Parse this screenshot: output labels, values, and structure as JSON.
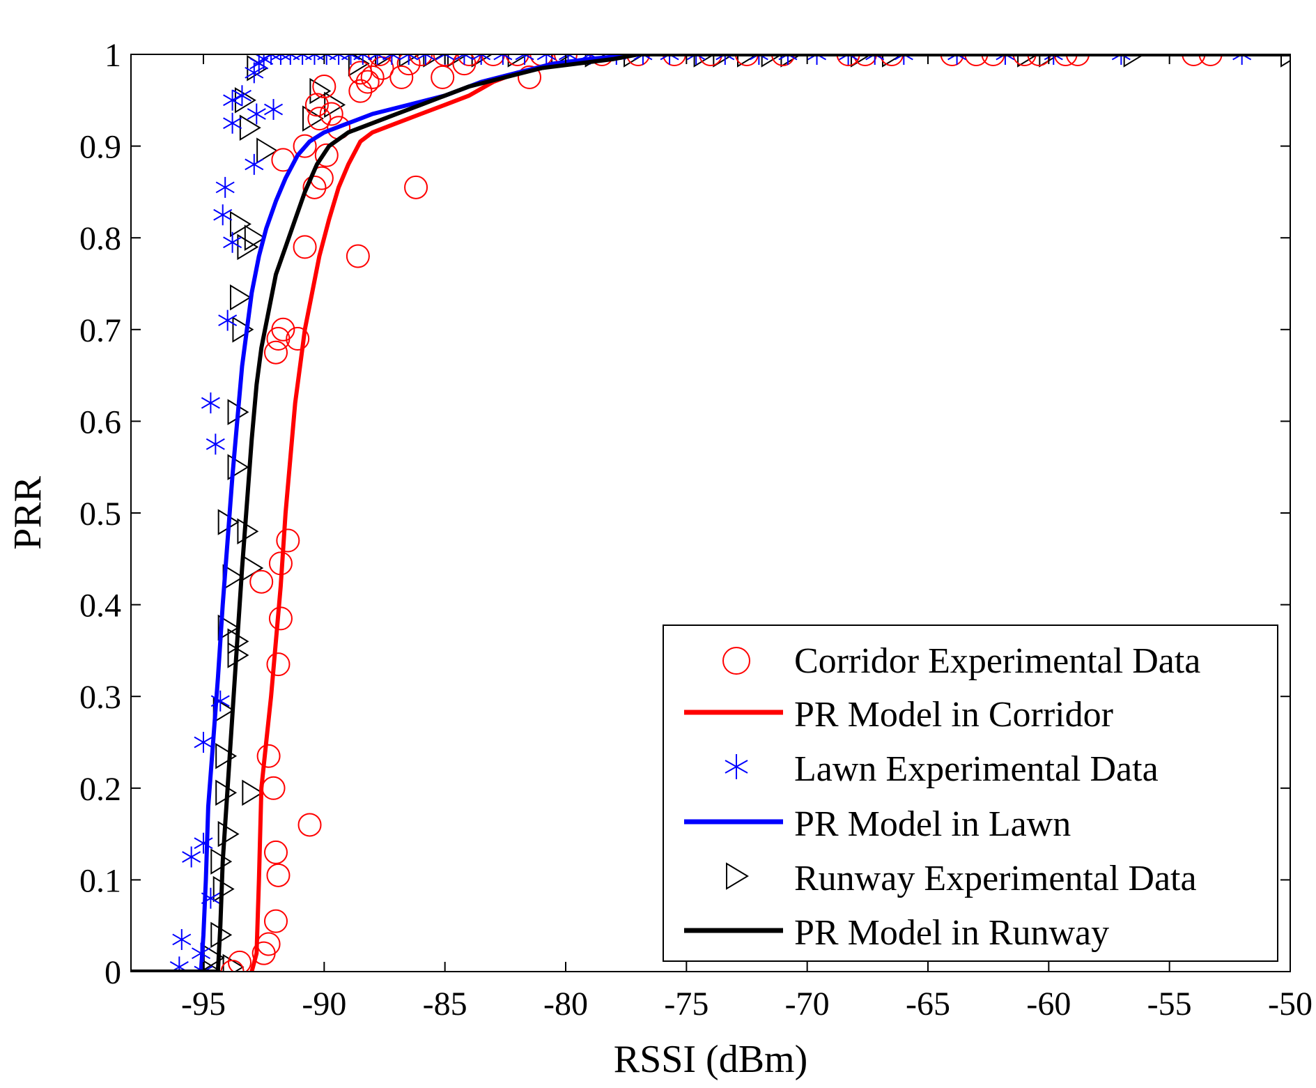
{
  "chart_data": {
    "type": "scatter",
    "title": "",
    "xlabel": "RSSI (dBm)",
    "ylabel": "PRR",
    "xlim": [
      -98,
      -50
    ],
    "ylim": [
      0,
      1
    ],
    "grid": false,
    "legend_position": "bottom-right",
    "xticks": [
      -95,
      -90,
      -85,
      -80,
      -75,
      -70,
      -65,
      -60,
      -55,
      -50
    ],
    "yticks": [
      0,
      0.1,
      0.2,
      0.3,
      0.4,
      0.5,
      0.6,
      0.7,
      0.8,
      0.9,
      1
    ],
    "xtick_labels": [
      "-95",
      "-90",
      "-85",
      "-80",
      "-75",
      "-70",
      "-65",
      "-60",
      "-55",
      "-50"
    ],
    "ytick_labels": [
      "0",
      "0.1",
      "0.2",
      "0.3",
      "0.4",
      "0.5",
      "0.6",
      "0.7",
      "0.8",
      "0.9",
      "1"
    ],
    "colors": {
      "corridor": "#ff0000",
      "lawn": "#0000ff",
      "runway": "#000000"
    },
    "series": [
      {
        "name": "Corridor Experimental Data",
        "kind": "scatter",
        "marker": "circle",
        "color": "#ff0000",
        "points": [
          [
            -93.8,
            0
          ],
          [
            -93.5,
            0.01
          ],
          [
            -92.5,
            0.02
          ],
          [
            -92.3,
            0.03
          ],
          [
            -92.0,
            0.055
          ],
          [
            -91.9,
            0.105
          ],
          [
            -92.0,
            0.13
          ],
          [
            -90.6,
            0.16
          ],
          [
            -92.1,
            0.2
          ],
          [
            -92.3,
            0.235
          ],
          [
            -91.9,
            0.335
          ],
          [
            -91.8,
            0.385
          ],
          [
            -92.6,
            0.425
          ],
          [
            -91.8,
            0.445
          ],
          [
            -91.5,
            0.47
          ],
          [
            -92.0,
            0.675
          ],
          [
            -91.9,
            0.69
          ],
          [
            -91.7,
            0.7
          ],
          [
            -91.1,
            0.69
          ],
          [
            -90.8,
            0.79
          ],
          [
            -88.6,
            0.78
          ],
          [
            -90.4,
            0.855
          ],
          [
            -86.2,
            0.855
          ],
          [
            -90.1,
            0.865
          ],
          [
            -91.7,
            0.885
          ],
          [
            -89.9,
            0.89
          ],
          [
            -90.8,
            0.9
          ],
          [
            -89.4,
            0.92
          ],
          [
            -90.2,
            0.93
          ],
          [
            -89.7,
            0.935
          ],
          [
            -90.3,
            0.945
          ],
          [
            -88.5,
            0.96
          ],
          [
            -90.0,
            0.965
          ],
          [
            -88.2,
            0.97
          ],
          [
            -88.0,
            0.975
          ],
          [
            -86.8,
            0.975
          ],
          [
            -81.5,
            0.975
          ],
          [
            -88.5,
            0.98
          ],
          [
            -87.6,
            0.985
          ],
          [
            -86.5,
            0.99
          ],
          [
            -85.1,
            0.975
          ],
          [
            -84.2,
            0.99
          ],
          [
            -87.7,
            1
          ],
          [
            -86.0,
            1
          ],
          [
            -85.0,
            1
          ],
          [
            -84.0,
            1
          ],
          [
            -83.0,
            1
          ],
          [
            -82.0,
            1
          ],
          [
            -81.0,
            1
          ],
          [
            -80.0,
            1
          ],
          [
            -78.5,
            1
          ],
          [
            -77.0,
            1
          ],
          [
            -75.5,
            1
          ],
          [
            -74.0,
            1
          ],
          [
            -72.5,
            1
          ],
          [
            -71.0,
            1
          ],
          [
            -68.3,
            1
          ],
          [
            -67.6,
            1
          ],
          [
            -66.5,
            1
          ],
          [
            -64.0,
            1
          ],
          [
            -63.0,
            1
          ],
          [
            -62.3,
            1
          ],
          [
            -61.0,
            1
          ],
          [
            -60.4,
            1
          ],
          [
            -59.3,
            1
          ],
          [
            -58.8,
            1
          ],
          [
            -54.0,
            1
          ],
          [
            -53.3,
            1
          ]
        ]
      },
      {
        "name": "PR Model in Corridor",
        "kind": "line",
        "color": "#ff0000",
        "points": [
          [
            -93.0,
            0
          ],
          [
            -92.8,
            0.02
          ],
          [
            -92.7,
            0.1
          ],
          [
            -92.6,
            0.2
          ],
          [
            -92.4,
            0.25
          ],
          [
            -92.2,
            0.3
          ],
          [
            -92.0,
            0.36
          ],
          [
            -91.8,
            0.42
          ],
          [
            -91.6,
            0.5
          ],
          [
            -91.4,
            0.56
          ],
          [
            -91.2,
            0.62
          ],
          [
            -91.0,
            0.66
          ],
          [
            -90.8,
            0.7
          ],
          [
            -90.5,
            0.74
          ],
          [
            -90.2,
            0.78
          ],
          [
            -89.8,
            0.82
          ],
          [
            -89.4,
            0.855
          ],
          [
            -89.0,
            0.88
          ],
          [
            -88.5,
            0.905
          ],
          [
            -88.0,
            0.915
          ],
          [
            -87.0,
            0.925
          ],
          [
            -86.0,
            0.935
          ],
          [
            -85.0,
            0.945
          ],
          [
            -84.0,
            0.955
          ],
          [
            -83.0,
            0.97
          ],
          [
            -82.0,
            0.98
          ],
          [
            -81.0,
            0.985
          ],
          [
            -80.0,
            0.99
          ],
          [
            -78.5,
            0.995
          ],
          [
            -77.0,
            1
          ]
        ]
      },
      {
        "name": "Lawn Experimental Data",
        "kind": "scatter",
        "marker": "asterisk",
        "color": "#0000ff",
        "points": [
          [
            -96.0,
            0.005
          ],
          [
            -95.9,
            0.035
          ],
          [
            -95.1,
            0.02
          ],
          [
            -95.0,
            0.0
          ],
          [
            -95.5,
            0.125
          ],
          [
            -95.0,
            0.14
          ],
          [
            -94.7,
            0.08
          ],
          [
            -95.0,
            0.25
          ],
          [
            -94.3,
            0.295
          ],
          [
            -94.0,
            0.71
          ],
          [
            -94.5,
            0.575
          ],
          [
            -94.7,
            0.62
          ],
          [
            -93.8,
            0.795
          ],
          [
            -94.2,
            0.825
          ],
          [
            -94.1,
            0.855
          ],
          [
            -92.9,
            0.88
          ],
          [
            -93.8,
            0.925
          ],
          [
            -92.8,
            0.935
          ],
          [
            -92.1,
            0.94
          ],
          [
            -93.8,
            0.95
          ],
          [
            -93.4,
            0.955
          ],
          [
            -92.9,
            0.98
          ],
          [
            -92.7,
            0.99
          ],
          [
            -92.5,
            0.995
          ],
          [
            -92.2,
            1
          ],
          [
            -91.8,
            1
          ],
          [
            -91.4,
            1
          ],
          [
            -90.9,
            1
          ],
          [
            -90.4,
            1
          ],
          [
            -89.9,
            1
          ],
          [
            -89.4,
            1
          ],
          [
            -88.9,
            1
          ],
          [
            -88.4,
            1
          ],
          [
            -87.8,
            1
          ],
          [
            -87.2,
            1
          ],
          [
            -86.5,
            1
          ],
          [
            -85.8,
            1
          ],
          [
            -85.0,
            1
          ],
          [
            -84.2,
            1
          ],
          [
            -83.5,
            1
          ],
          [
            -82.6,
            1
          ],
          [
            -81.7,
            1
          ],
          [
            -80.8,
            1
          ],
          [
            -79.9,
            1
          ],
          [
            -79.0,
            1
          ],
          [
            -77.9,
            1
          ],
          [
            -76.8,
            1
          ],
          [
            -75.7,
            1
          ],
          [
            -74.6,
            1
          ],
          [
            -73.4,
            1
          ],
          [
            -72.0,
            1
          ],
          [
            -70.8,
            1
          ],
          [
            -69.6,
            1
          ],
          [
            -68.3,
            1
          ],
          [
            -67.2,
            1
          ],
          [
            -66.0,
            1
          ],
          [
            -63.8,
            1
          ],
          [
            -61.8,
            1
          ],
          [
            -59.8,
            1
          ],
          [
            -57.0,
            1
          ],
          [
            -52.0,
            1
          ]
        ]
      },
      {
        "name": "PR Model in Lawn",
        "kind": "line",
        "color": "#0000ff",
        "points": [
          [
            -95.1,
            0
          ],
          [
            -95.0,
            0.04
          ],
          [
            -94.9,
            0.1
          ],
          [
            -94.8,
            0.18
          ],
          [
            -94.6,
            0.25
          ],
          [
            -94.4,
            0.32
          ],
          [
            -94.2,
            0.4
          ],
          [
            -94.0,
            0.47
          ],
          [
            -93.8,
            0.54
          ],
          [
            -93.6,
            0.6
          ],
          [
            -93.4,
            0.66
          ],
          [
            -93.2,
            0.7
          ],
          [
            -93.0,
            0.74
          ],
          [
            -92.7,
            0.78
          ],
          [
            -92.4,
            0.81
          ],
          [
            -92.0,
            0.84
          ],
          [
            -91.6,
            0.865
          ],
          [
            -91.1,
            0.89
          ],
          [
            -90.6,
            0.905
          ],
          [
            -90.0,
            0.915
          ],
          [
            -89.0,
            0.925
          ],
          [
            -88.0,
            0.935
          ],
          [
            -86.5,
            0.945
          ],
          [
            -85.0,
            0.955
          ],
          [
            -83.5,
            0.97
          ],
          [
            -82.0,
            0.98
          ],
          [
            -80.5,
            0.99
          ],
          [
            -79.0,
            0.995
          ],
          [
            -77.0,
            1
          ]
        ]
      },
      {
        "name": "Runway Experimental Data",
        "kind": "scatter",
        "marker": "triangle-right",
        "color": "#000000",
        "points": [
          [
            -94.7,
            0
          ],
          [
            -93.8,
            0.005
          ],
          [
            -94.6,
            0.015
          ],
          [
            -94.3,
            0.04
          ],
          [
            -94.2,
            0.09
          ],
          [
            -94.3,
            0.12
          ],
          [
            -94.0,
            0.15
          ],
          [
            -94.1,
            0.195
          ],
          [
            -93.0,
            0.195
          ],
          [
            -94.1,
            0.235
          ],
          [
            -94.2,
            0.285
          ],
          [
            -93.6,
            0.345
          ],
          [
            -93.6,
            0.36
          ],
          [
            -94.0,
            0.375
          ],
          [
            -93.8,
            0.43
          ],
          [
            -94.0,
            0.49
          ],
          [
            -93.2,
            0.48
          ],
          [
            -93.0,
            0.44
          ],
          [
            -93.6,
            0.55
          ],
          [
            -93.6,
            0.61
          ],
          [
            -93.4,
            0.7
          ],
          [
            -93.5,
            0.735
          ],
          [
            -93.2,
            0.79
          ],
          [
            -92.9,
            0.8
          ],
          [
            -93.5,
            0.815
          ],
          [
            -93.1,
            0.92
          ],
          [
            -92.4,
            0.895
          ],
          [
            -93.3,
            0.95
          ],
          [
            -90.5,
            0.93
          ],
          [
            -89.6,
            0.945
          ],
          [
            -90.2,
            0.96
          ],
          [
            -92.8,
            0.985
          ],
          [
            -88.6,
            0.99
          ],
          [
            -87.5,
            1
          ],
          [
            -86.5,
            1
          ],
          [
            -85.5,
            1
          ],
          [
            -84.5,
            1
          ],
          [
            -83.5,
            1
          ],
          [
            -82.0,
            1
          ],
          [
            -80.2,
            1
          ],
          [
            -78.8,
            1
          ],
          [
            -77.2,
            1
          ],
          [
            -74.3,
            1
          ],
          [
            -73.5,
            1
          ],
          [
            -72.5,
            1
          ],
          [
            -71.5,
            1
          ],
          [
            -70.7,
            1
          ],
          [
            -67.8,
            1
          ],
          [
            -66.5,
            1
          ],
          [
            -60.9,
            1
          ],
          [
            -60.0,
            1
          ],
          [
            -56.5,
            1
          ],
          [
            -50.0,
            1
          ]
        ]
      },
      {
        "name": "PR Model in Runway",
        "kind": "line",
        "color": "#000000",
        "points": [
          [
            -98.0,
            0
          ],
          [
            -94.4,
            0
          ],
          [
            -94.3,
            0.05
          ],
          [
            -94.2,
            0.12
          ],
          [
            -94.0,
            0.2
          ],
          [
            -93.8,
            0.28
          ],
          [
            -93.6,
            0.36
          ],
          [
            -93.4,
            0.44
          ],
          [
            -93.2,
            0.51
          ],
          [
            -93.0,
            0.58
          ],
          [
            -92.8,
            0.64
          ],
          [
            -92.6,
            0.68
          ],
          [
            -92.3,
            0.72
          ],
          [
            -92.0,
            0.76
          ],
          [
            -91.6,
            0.79
          ],
          [
            -91.2,
            0.82
          ],
          [
            -90.8,
            0.85
          ],
          [
            -90.3,
            0.88
          ],
          [
            -89.8,
            0.9
          ],
          [
            -89.0,
            0.915
          ],
          [
            -88.0,
            0.925
          ],
          [
            -87.0,
            0.935
          ],
          [
            -86.0,
            0.945
          ],
          [
            -85.0,
            0.955
          ],
          [
            -84.0,
            0.965
          ],
          [
            -82.5,
            0.975
          ],
          [
            -81.0,
            0.985
          ],
          [
            -79.5,
            0.99
          ],
          [
            -78.0,
            0.995
          ],
          [
            -77.0,
            1
          ],
          [
            -50.0,
            1
          ]
        ]
      }
    ]
  }
}
